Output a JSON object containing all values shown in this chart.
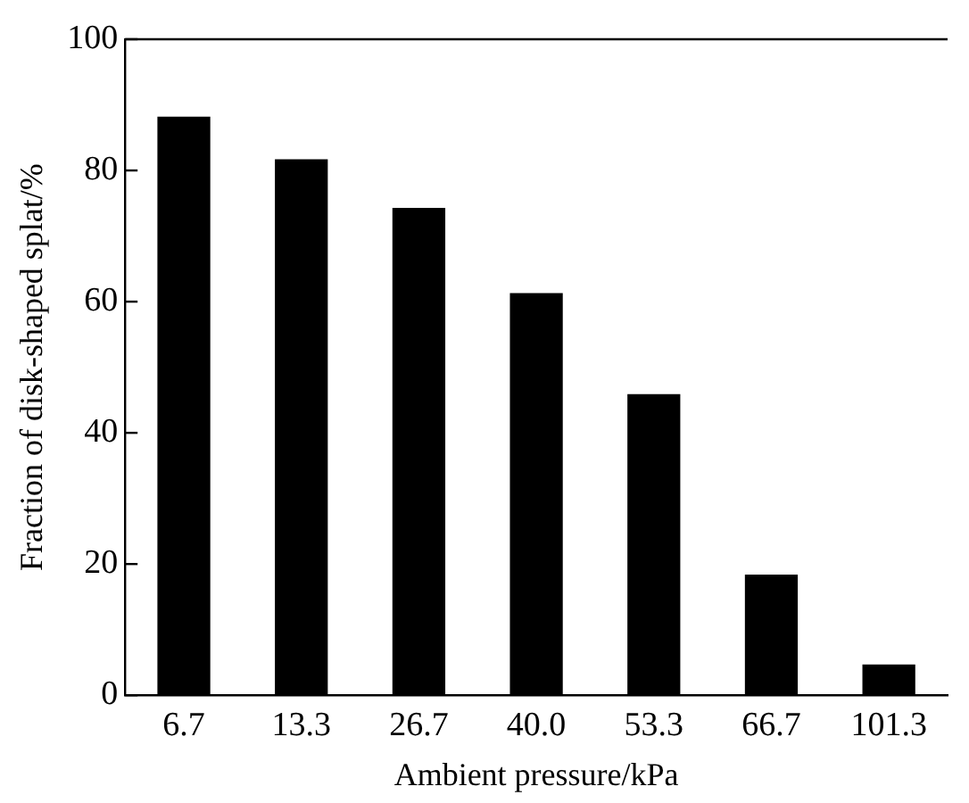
{
  "chart_data": {
    "type": "bar",
    "xlabel": "Ambient pressure/kPa",
    "ylabel": "Fraction of disk-shaped splat/%",
    "categories": [
      "6.7",
      "13.3",
      "26.7",
      "40.0",
      "53.3",
      "66.7",
      "101.3"
    ],
    "values": [
      88.2,
      81.7,
      74.3,
      61.3,
      45.9,
      18.4,
      4.7
    ],
    "color": "#000000",
    "ylim": [
      0,
      100
    ],
    "yticks": [
      0,
      20,
      40,
      60,
      80,
      100
    ],
    "grid": false,
    "legend": false
  }
}
